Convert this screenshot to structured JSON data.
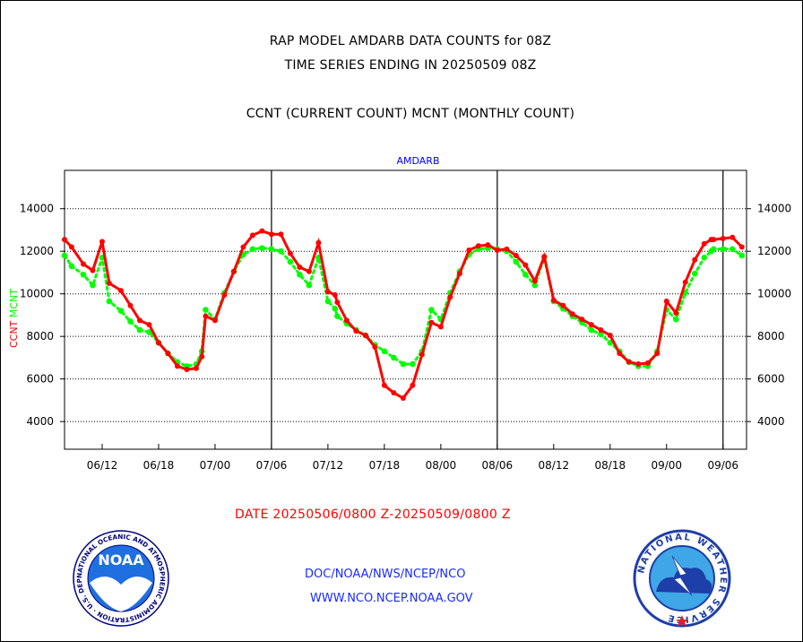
{
  "titles": {
    "line1": "RAP MODEL AMDARB DATA COUNTS for 08Z",
    "line2": "TIME SERIES ENDING IN 20250509 08Z",
    "line3": "CCNT (CURRENT COUNT) MCNT (MONTHLY COUNT)"
  },
  "footer": {
    "date_range": "DATE 20250506/0800 Z-20250509/0800 Z",
    "org": "DOC/NOAA/NWS/NCEP/NCO",
    "url": "WWW.NCO.NCEP.NOAA.GOV"
  },
  "logos": {
    "noaa_text": "NOAA",
    "noaa_ring_text": "NATIONAL OCEANIC AND ATMOSPHERIC ADMINISTRATION · U.S. DEPARTMENT OF COMMERCE",
    "nws_ring_text": "NATIONAL WEATHER SERVICE"
  },
  "chart_data": {
    "type": "line",
    "title": "AMDARB",
    "ylabel_left": [
      "CCNT",
      "MCNT"
    ],
    "ylim": [
      2700,
      15800
    ],
    "yticks": [
      4000,
      6000,
      8000,
      10000,
      12000,
      14000
    ],
    "ytick_labels": [
      "4000",
      "6000",
      "8000",
      "10000",
      "12000",
      "14000"
    ],
    "xticks": [
      "06/12",
      "06/18",
      "07/00",
      "07/06",
      "07/12",
      "07/18",
      "08/00",
      "08/06",
      "08/12",
      "08/18",
      "09/00",
      "09/06"
    ],
    "grid": true,
    "colors": {
      "ccnt": "#ff0000",
      "mcnt": "#00ff00",
      "axis": "#000000",
      "title": "#0000ff"
    },
    "x": [
      0,
      0.75,
      2,
      3,
      4,
      4.75,
      6,
      7,
      8,
      9,
      10,
      11,
      12,
      13,
      14,
      14.6,
      15,
      16,
      17,
      18,
      19,
      20,
      21,
      22,
      23,
      24,
      25,
      26,
      27,
      28,
      28.75,
      29,
      30,
      31,
      32,
      33,
      34,
      35,
      36,
      37,
      38,
      39,
      40,
      41,
      42,
      43,
      44,
      45,
      46,
      47,
      48,
      49,
      50,
      51,
      52,
      53,
      54,
      55,
      56,
      57,
      58,
      59,
      60,
      61,
      62,
      63,
      64,
      65,
      66,
      67,
      68,
      68.75,
      69,
      70,
      71,
      72
    ],
    "series": [
      {
        "name": "CCNT",
        "values": [
          12550,
          12200,
          11400,
          11100,
          12450,
          10500,
          10150,
          9450,
          8750,
          8550,
          7700,
          7200,
          6600,
          6450,
          6500,
          7050,
          8950,
          8750,
          9950,
          11050,
          12200,
          12750,
          12950,
          12800,
          12800,
          11900,
          11250,
          11050,
          12400,
          10100,
          9950,
          9600,
          8750,
          8250,
          8050,
          7500,
          5700,
          5350,
          5100,
          5700,
          7150,
          8650,
          8450,
          9850,
          10950,
          12050,
          12250,
          12300,
          12050,
          12100,
          11800,
          11350,
          10600,
          11750,
          9700,
          9450,
          9050,
          8800,
          8550,
          8300,
          8050,
          7200,
          6800,
          6700,
          6750,
          7200,
          9650,
          9100,
          10550,
          11600,
          12350,
          12550,
          12550,
          12600,
          12650,
          12200
        ]
      },
      {
        "name": "MCNT",
        "values": [
          11800,
          11300,
          10900,
          10400,
          11700,
          9650,
          9200,
          8700,
          8300,
          8200,
          7700,
          7200,
          6800,
          6600,
          6700,
          7300,
          9250,
          8800,
          10050,
          11050,
          11850,
          12100,
          12150,
          12100,
          12000,
          11500,
          10900,
          10400,
          11700,
          9650,
          9300,
          8950,
          8600,
          8300,
          8050,
          7600,
          7300,
          7000,
          6700,
          6700,
          7300,
          9250,
          8800,
          10050,
          11050,
          11850,
          12100,
          12150,
          12100,
          12000,
          11500,
          10900,
          10400,
          11700,
          9650,
          9300,
          8950,
          8650,
          8300,
          8100,
          7700,
          7300,
          6800,
          6600,
          6600,
          7300,
          9250,
          8800,
          10050,
          10950,
          11700,
          12000,
          12100,
          12100,
          12100,
          11800
        ]
      }
    ],
    "day_boundaries": [
      22,
      46,
      70
    ]
  }
}
